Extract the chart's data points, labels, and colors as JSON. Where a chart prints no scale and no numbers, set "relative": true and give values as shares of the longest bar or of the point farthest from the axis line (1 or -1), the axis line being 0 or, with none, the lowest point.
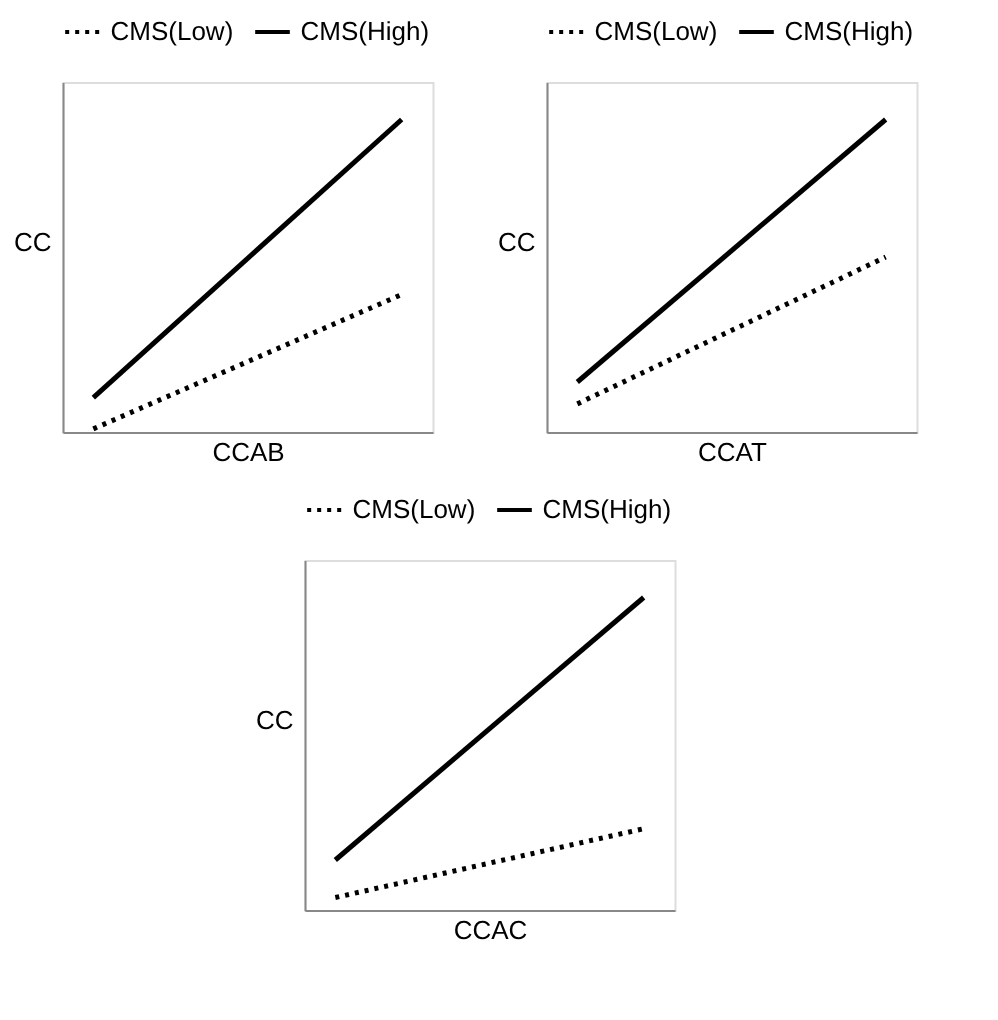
{
  "chart_data": [
    {
      "type": "line",
      "relative": true,
      "xlabel": "CCAB",
      "ylabel": "CC",
      "legend": "top",
      "tick_labels": false,
      "categories": [
        null,
        null
      ],
      "series": [
        {
          "name": "CMS(Low)",
          "color": "#000000",
          "line_style": "dotted",
          "values": [
            0.01,
            0.44
          ]
        },
        {
          "name": "CMS(High)",
          "color": "#000000",
          "line_style": "solid",
          "values": [
            0.11,
            1
          ]
        }
      ]
    },
    {
      "type": "line",
      "relative": true,
      "xlabel": "CCAT",
      "ylabel": "CC",
      "legend": "top",
      "tick_labels": false,
      "categories": [
        null,
        null
      ],
      "series": [
        {
          "name": "CMS(Low)",
          "color": "#000000",
          "line_style": "dotted",
          "values": [
            0.09,
            0.56
          ]
        },
        {
          "name": "CMS(High)",
          "color": "#000000",
          "line_style": "solid",
          "values": [
            0.16,
            1
          ]
        }
      ]
    },
    {
      "type": "line",
      "relative": true,
      "xlabel": "CCAC",
      "ylabel": "CC",
      "legend": "top",
      "tick_labels": false,
      "categories": [
        null,
        null
      ],
      "series": [
        {
          "name": "CMS(Low)",
          "color": "#000000",
          "line_style": "dotted",
          "values": [
            0.04,
            0.26
          ]
        },
        {
          "name": "CMS(High)",
          "color": "#000000",
          "line_style": "solid",
          "values": [
            0.16,
            1
          ]
        }
      ]
    }
  ]
}
